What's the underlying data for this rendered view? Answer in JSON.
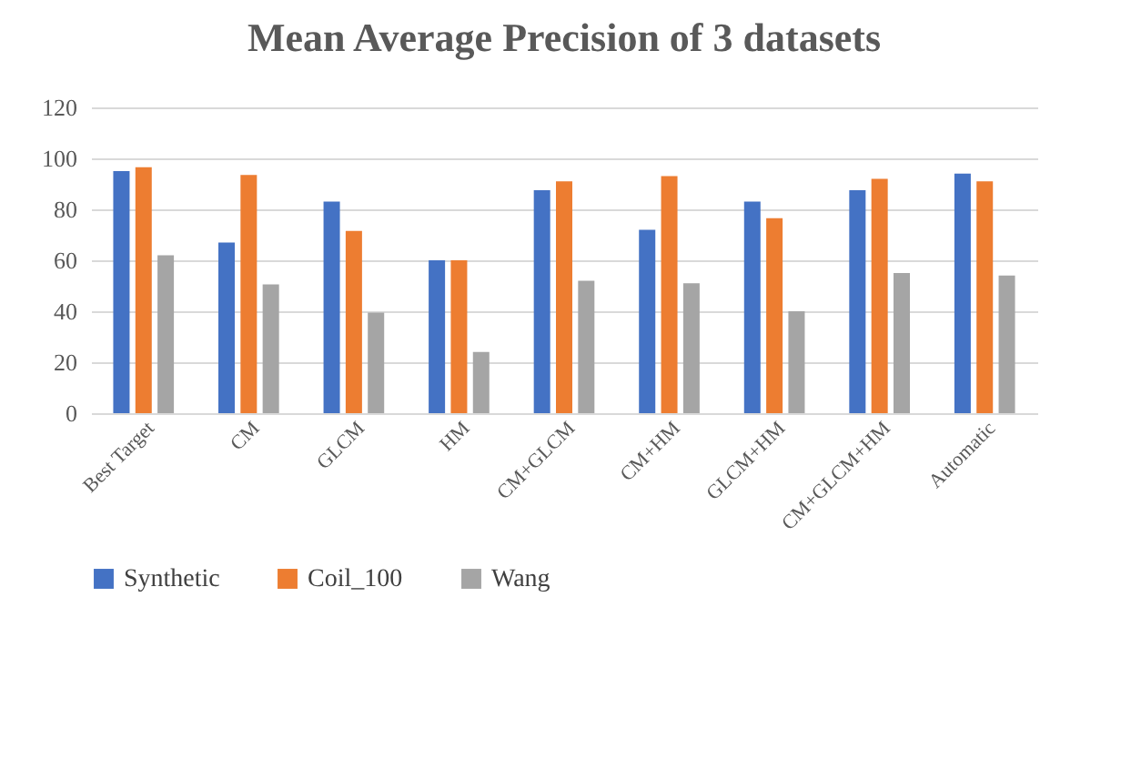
{
  "chart_data": {
    "type": "bar",
    "title": "Mean Average Precision of 3 datasets",
    "categories": [
      "Best Target",
      "CM",
      "GLCM",
      "HM",
      "CM+GLCM",
      "CM+HM",
      "GLCM+HM",
      "CM+GLCM+HM",
      "Automatic"
    ],
    "series": [
      {
        "name": "Synthetic",
        "color": "#4472c4",
        "values": [
          95,
          67,
          83,
          60,
          87.5,
          72,
          83,
          87.5,
          94
        ]
      },
      {
        "name": "Coil_100",
        "color": "#ed7d31",
        "values": [
          96.5,
          93.5,
          71.5,
          60,
          91,
          93,
          76.5,
          92,
          91
        ]
      },
      {
        "name": "Wang",
        "color": "#a5a5a5",
        "values": [
          62,
          50.5,
          39.5,
          24,
          52,
          51,
          40,
          55,
          54
        ]
      }
    ],
    "ylim": [
      0,
      120
    ],
    "yticks": [
      0,
      20,
      40,
      60,
      80,
      100,
      120
    ],
    "grid": "y",
    "legend": "bottom"
  }
}
